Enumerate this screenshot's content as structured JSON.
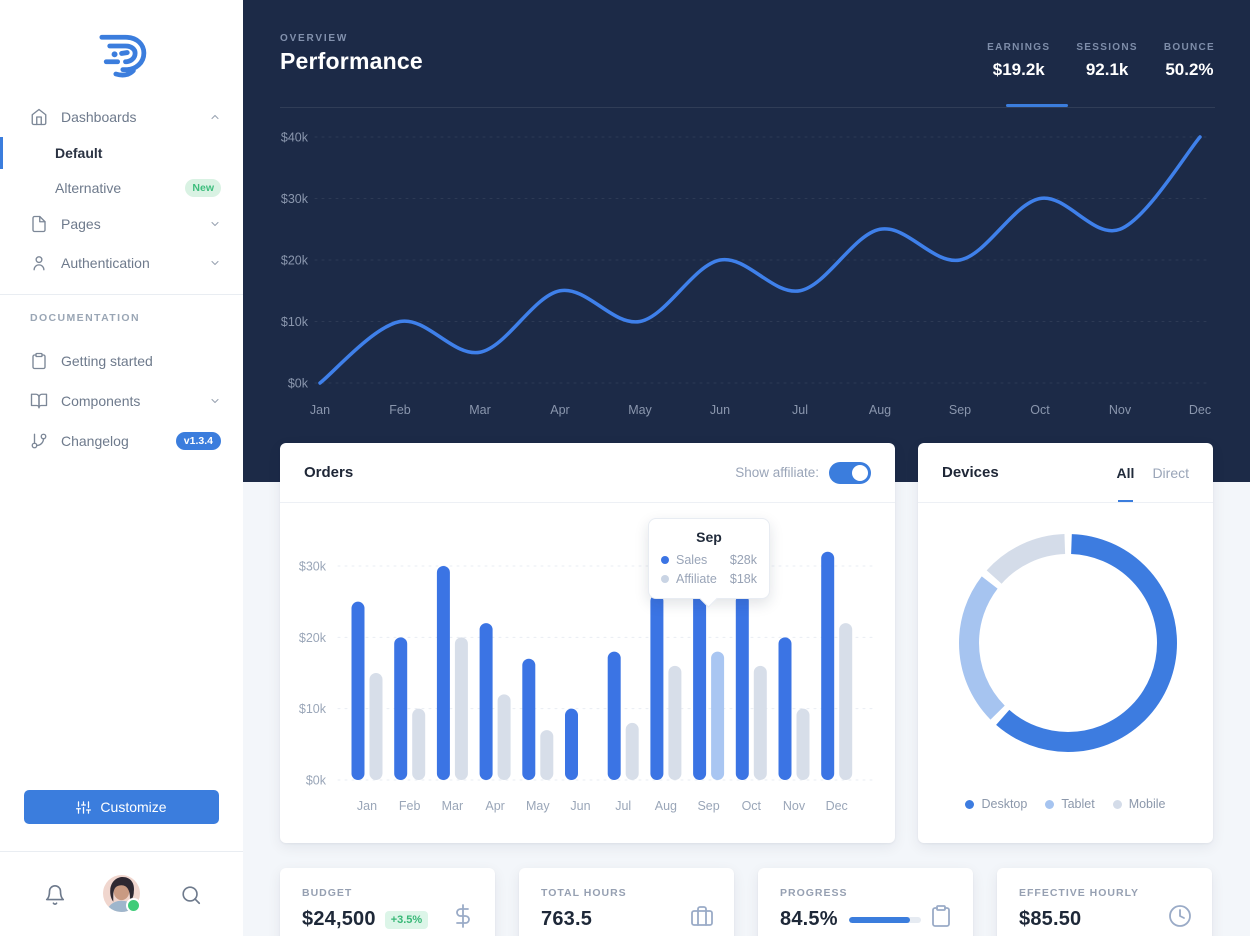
{
  "sidebar": {
    "items": {
      "dashboards": "Dashboards",
      "default": "Default",
      "alternative": "Alternative",
      "alternative_badge": "New",
      "pages": "Pages",
      "authentication": "Authentication",
      "section": "DOCUMENTATION",
      "getting_started": "Getting started",
      "components": "Components",
      "changelog": "Changelog",
      "changelog_badge": "v1.3.4"
    },
    "customize": "Customize"
  },
  "header": {
    "eyebrow": "OVERVIEW",
    "title": "Performance",
    "stats": [
      {
        "label": "EARNINGS",
        "value": "$19.2k",
        "active": true
      },
      {
        "label": "SESSIONS",
        "value": "92.1k",
        "active": false
      },
      {
        "label": "BOUNCE",
        "value": "50.2%",
        "active": false
      }
    ]
  },
  "orders": {
    "title": "Orders",
    "toggle_label": "Show affiliate:",
    "toggle_on": true
  },
  "devices": {
    "title": "Devices",
    "tabs": [
      "All",
      "Direct"
    ],
    "active_tab": "All",
    "legend": [
      {
        "label": "Desktop"
      },
      {
        "label": "Tablet"
      },
      {
        "label": "Mobile"
      }
    ]
  },
  "stat_cards": [
    {
      "label": "BUDGET",
      "value": "$24,500",
      "badge": "+3.5%",
      "icon": "dollar-icon"
    },
    {
      "label": "TOTAL HOURS",
      "value": "763.5",
      "icon": "briefcase-icon"
    },
    {
      "label": "PROGRESS",
      "value": "84.5%",
      "progress_percent": 84.5,
      "icon": "clipboard-icon"
    },
    {
      "label": "EFFECTIVE HOURLY",
      "value": "$85.50",
      "icon": "clock-icon"
    }
  ],
  "chart_data": [
    {
      "type": "line",
      "title": "Performance earnings by month",
      "x": [
        "Jan",
        "Feb",
        "Mar",
        "Apr",
        "May",
        "Jun",
        "Jul",
        "Aug",
        "Sep",
        "Oct",
        "Nov",
        "Dec"
      ],
      "series": [
        {
          "name": "Earnings",
          "values": [
            0,
            10,
            5,
            15,
            10,
            20,
            15,
            25,
            20,
            30,
            25,
            40
          ]
        }
      ],
      "yticks": [
        0,
        10,
        20,
        30,
        40
      ],
      "ytick_labels": [
        "$0k",
        "$10k",
        "$20k",
        "$30k",
        "$40k"
      ],
      "ylim": [
        0,
        40
      ],
      "grid": "dotted horizontal",
      "legend_position": "none"
    },
    {
      "type": "bar",
      "title": "Orders",
      "categories": [
        "Jan",
        "Feb",
        "Mar",
        "Apr",
        "May",
        "Jun",
        "Jul",
        "Aug",
        "Sep",
        "Oct",
        "Nov",
        "Dec"
      ],
      "series": [
        {
          "name": "Sales",
          "values": [
            25,
            20,
            30,
            22,
            17,
            10,
            18,
            26,
            28,
            26,
            20,
            32
          ]
        },
        {
          "name": "Affiliate",
          "values": [
            15,
            10,
            20,
            12,
            7,
            0,
            8,
            16,
            18,
            16,
            10,
            22
          ]
        }
      ],
      "yticks": [
        0,
        10,
        20,
        30
      ],
      "ytick_labels": [
        "$0k",
        "$10k",
        "$20k",
        "$30k"
      ],
      "ylim": [
        0,
        35
      ],
      "grid": "dotted horizontal",
      "highlight_category": "Sep",
      "tooltip": {
        "title": "Sep",
        "rows": [
          {
            "series": "Sales",
            "value": "$28k"
          },
          {
            "series": "Affiliate",
            "value": "$18k"
          }
        ]
      }
    },
    {
      "type": "pie",
      "title": "Devices",
      "labels": [
        "Desktop",
        "Tablet",
        "Mobile"
      ],
      "values": [
        62,
        24,
        14
      ],
      "legend_position": "bottom"
    }
  ],
  "colors": {
    "primary": "#3B7DDD",
    "navy_header": "#1C2A47",
    "line_stroke": "#3F80EA",
    "bar_sales": "#3B74E4",
    "bar_affiliate": "#D7DEE9",
    "bar_affiliate_highlight": "#A9C6F2",
    "donut": [
      "#3D7CE0",
      "#A6C4F0",
      "#D4DCE9"
    ],
    "badge_green_bg": "#DCF5E8",
    "badge_green_text": "#38B877",
    "online_dot": "#3FCC79"
  }
}
